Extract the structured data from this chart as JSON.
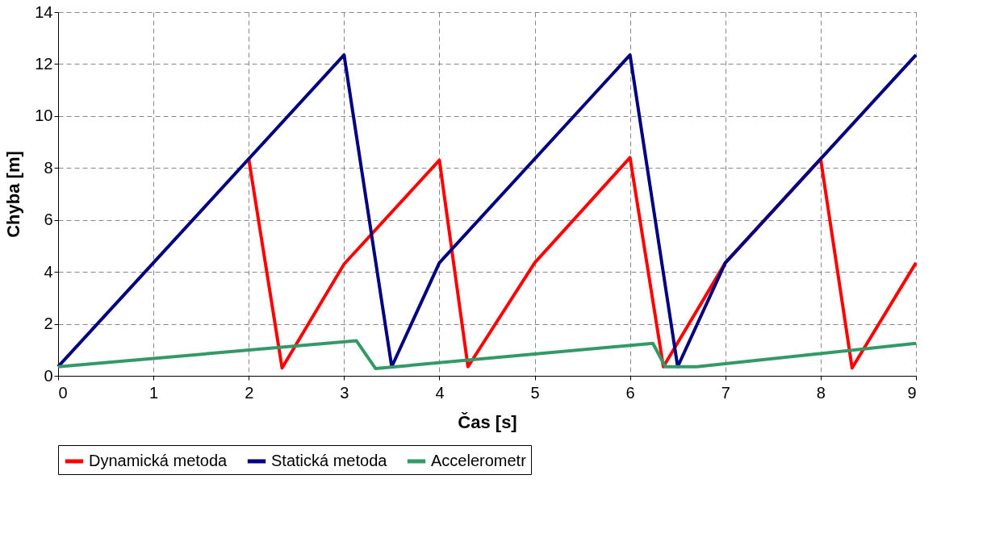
{
  "chart_data": {
    "type": "line",
    "xlabel": "Čas [s]",
    "ylabel": "Chyba [m]",
    "xlim": [
      0,
      9
    ],
    "xticks": [
      0,
      1,
      2,
      3,
      4,
      5,
      6,
      7,
      8,
      9
    ],
    "ylim": [
      0,
      14
    ],
    "yticks": [
      0,
      2,
      4,
      6,
      8,
      10,
      12,
      14
    ],
    "grid": true,
    "legend": "bottom",
    "line_style": "solid",
    "marker": "none",
    "series": [
      {
        "name": "Dynamická metoda",
        "color": "#ff0000",
        "x": [
          2,
          2.35,
          3,
          4,
          4.3,
          5,
          6,
          6.35,
          7,
          8,
          8.33,
          9
        ],
        "values": [
          8.35,
          0.3,
          4.3,
          8.3,
          0.35,
          4.35,
          8.4,
          0.35,
          4.35,
          8.35,
          0.3,
          4.35
        ]
      },
      {
        "name": "Statická metoda",
        "color": "#000080",
        "x": [
          0,
          3,
          3.5,
          4,
          6,
          6.5,
          7,
          9
        ],
        "values": [
          0.35,
          12.35,
          0.35,
          4.35,
          12.35,
          0.35,
          4.35,
          12.35
        ]
      },
      {
        "name": "Accelerometr",
        "color": "#339966",
        "x": [
          0,
          3.13,
          3.33,
          6.24,
          6.37,
          6.7,
          9
        ],
        "values": [
          0.35,
          1.35,
          0.28,
          1.25,
          0.35,
          0.35,
          1.25
        ]
      }
    ]
  }
}
